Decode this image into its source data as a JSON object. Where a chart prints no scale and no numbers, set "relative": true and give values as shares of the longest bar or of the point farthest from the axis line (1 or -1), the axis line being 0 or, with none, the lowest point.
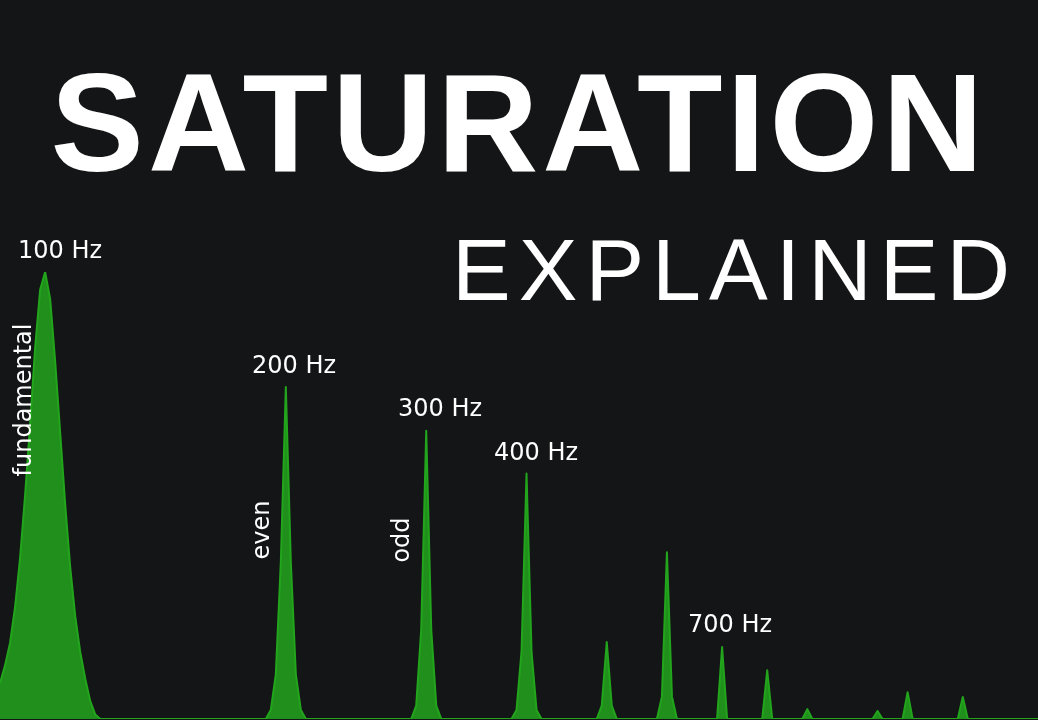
{
  "chart_data": {
    "type": "area",
    "title": "SATURATION",
    "subtitle": "EXPLAINED",
    "relative": true,
    "categories": [
      null,
      null,
      null,
      null,
      null,
      null,
      null,
      null,
      null,
      null,
      null,
      null,
      null,
      null,
      null,
      null,
      null,
      null,
      null,
      null,
      null,
      null,
      null,
      null,
      null,
      null,
      null,
      null,
      null,
      null,
      null,
      null,
      null,
      null,
      null,
      null,
      null,
      null,
      null,
      null,
      null,
      null,
      null,
      null,
      null,
      null,
      null,
      null,
      null,
      null,
      null,
      null,
      null,
      null,
      null,
      null,
      null,
      null,
      null,
      null,
      null,
      null,
      null,
      null,
      null,
      null,
      null,
      null,
      null,
      null,
      null,
      null,
      null,
      null,
      null,
      null,
      null,
      null,
      null,
      null,
      null,
      null,
      null,
      null,
      null,
      null,
      null,
      null,
      null,
      null,
      null,
      null,
      null,
      null,
      null,
      null,
      null,
      null,
      null,
      null,
      null,
      null,
      null,
      null,
      null,
      null,
      null,
      null,
      null,
      null,
      null,
      null,
      null,
      null,
      null,
      null,
      null,
      null,
      null,
      null,
      null,
      null,
      null,
      null,
      null,
      null,
      null,
      null,
      null,
      null,
      null,
      null,
      null,
      null,
      null,
      null,
      null,
      null,
      null,
      null,
      null,
      null,
      null,
      null,
      null,
      null,
      null,
      null,
      null,
      null,
      null,
      null,
      null,
      null,
      null,
      null,
      null,
      null,
      null,
      null,
      null,
      null,
      null,
      null,
      null,
      null,
      null,
      null,
      null,
      null,
      null,
      null,
      null,
      null,
      null,
      null,
      null,
      null,
      null,
      null,
      null,
      null,
      null,
      null,
      null,
      null,
      null,
      null,
      null,
      null,
      null,
      null,
      null,
      null,
      null,
      null,
      null,
      null,
      null,
      null,
      null,
      null,
      null,
      null,
      null,
      null,
      null,
      null
    ],
    "series": [
      {
        "color": "#22a51c",
        "values": [
          0.08,
          0.12,
          0.17,
          0.25,
          0.36,
          0.5,
          0.66,
          0.83,
          0.96,
          1,
          0.94,
          0.8,
          0.64,
          0.48,
          0.34,
          0.23,
          0.15,
          0.09,
          0.04,
          0.01,
          0,
          0,
          0,
          0,
          0,
          0,
          0,
          0,
          0,
          0,
          0,
          0,
          0,
          0,
          0,
          0,
          0,
          0,
          0,
          0,
          0,
          0,
          0,
          0,
          0,
          0,
          0,
          0,
          0,
          0,
          0,
          0,
          0,
          0,
          0.02,
          0.1,
          0.35,
          0.743,
          0.35,
          0.1,
          0.02,
          0,
          0,
          0,
          0,
          0,
          0,
          0,
          0,
          0,
          0,
          0,
          0,
          0,
          0,
          0,
          0,
          0,
          0,
          0,
          0,
          0,
          0,
          0.03,
          0.2,
          0.645,
          0.2,
          0.03,
          0,
          0,
          0,
          0,
          0,
          0,
          0,
          0,
          0,
          0,
          0,
          0,
          0,
          0,
          0,
          0.02,
          0.15,
          0.549,
          0.15,
          0.02,
          0,
          0,
          0,
          0,
          0,
          0,
          0,
          0,
          0,
          0,
          0,
          0,
          0.03,
          0.172,
          0.03,
          0,
          0,
          0,
          0,
          0,
          0,
          0,
          0,
          0,
          0.05,
          0.373,
          0.05,
          0,
          0,
          0,
          0,
          0,
          0,
          0,
          0,
          0,
          0.161,
          0,
          0,
          0,
          0,
          0,
          0,
          0,
          0,
          0.109,
          0,
          0,
          0,
          0,
          0,
          0,
          0,
          0.022,
          0,
          0,
          0,
          0,
          0,
          0,
          0,
          0,
          0,
          0,
          0,
          0,
          0,
          0.018,
          0,
          0,
          0,
          0,
          0,
          0.06,
          0,
          0,
          0,
          0,
          0,
          0,
          0,
          0,
          0,
          0,
          0.049,
          0,
          0,
          0,
          0,
          0,
          0,
          0,
          0,
          0,
          0,
          0,
          0,
          0,
          0,
          0
        ]
      }
    ],
    "annotations": [
      "100 Hz",
      "200 Hz",
      "300 Hz",
      "400 Hz",
      "700 Hz",
      "fundamental",
      "even",
      "odd"
    ]
  }
}
